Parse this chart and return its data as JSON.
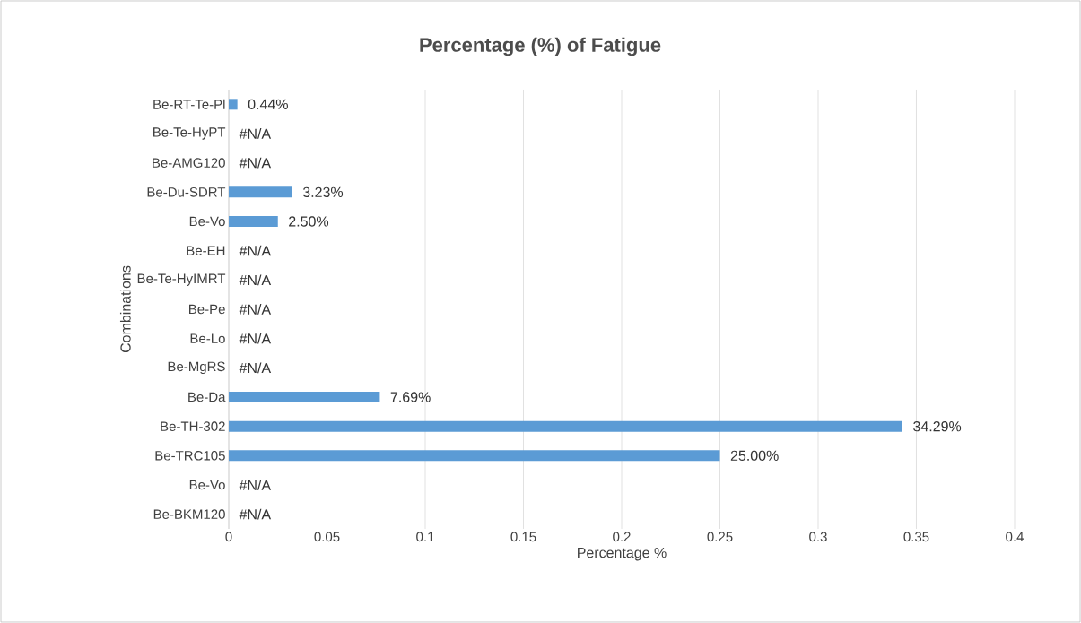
{
  "chart_data": {
    "type": "bar",
    "orientation": "horizontal",
    "title": "Percentage (%) of Fatigue",
    "xlabel": "Percentage %",
    "ylabel": "Combinations",
    "categories": [
      "Be-RT-Te-Pl",
      "Be-Te-HyPT",
      "Be-AMG120",
      "Be-Du-SDRT",
      "Be-Vo",
      "Be-EH",
      "Be-Te-HyIMRT",
      "Be-Pe",
      "Be-Lo",
      "Be-MgRS",
      "Be-Da",
      "Be-TH-302",
      "Be-TRC105",
      "Be-Vo",
      "Be-BKM120"
    ],
    "values": [
      0.0044,
      null,
      null,
      0.0323,
      0.025,
      null,
      null,
      null,
      null,
      null,
      0.0769,
      0.3429,
      0.25,
      null,
      null
    ],
    "value_labels": [
      "0.44%",
      "#N/A",
      "#N/A",
      "3.23%",
      "2.50%",
      "#N/A",
      "#N/A",
      "#N/A",
      "#N/A",
      "#N/A",
      "7.69%",
      "34.29%",
      "25.00%",
      "#N/A",
      "#N/A"
    ],
    "color": "#5b9bd5",
    "xlim": [
      0,
      0.4
    ],
    "xticks": [
      0,
      0.05,
      0.1,
      0.15,
      0.2,
      0.25,
      0.3,
      0.35,
      0.4
    ],
    "grid": "x"
  }
}
